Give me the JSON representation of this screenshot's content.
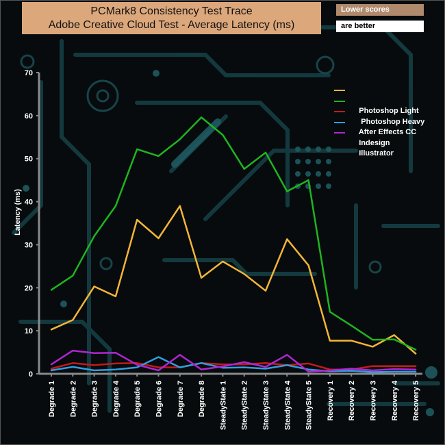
{
  "header": {
    "title_line1": "PCMark8 Consistency Test Trace",
    "title_line2": "Adobe Creative Cloud Test -  Average Latency (ms)",
    "note_line1": "Lower scores",
    "note_line2": "are better"
  },
  "colors": {
    "background": "#070b0d",
    "circuit": "#1a4a50",
    "axis": "#8a8a8a",
    "title_box": "#dca77b"
  },
  "chart_data": {
    "type": "line",
    "title": "PCMark8 Consistency Test Trace Adobe Creative Cloud Test -  Average Latency (ms)",
    "xlabel": "",
    "ylabel": "Latency (ms)",
    "ylim": [
      0,
      70
    ],
    "yticks": [
      "0",
      "10",
      "20",
      "30",
      "40",
      "50",
      "60",
      "70"
    ],
    "grid": false,
    "legend_position": "top-right",
    "categories": [
      "Degrade 1",
      "Degrade 2",
      "Degrade 3",
      "Degrade 4",
      "Degrade 5",
      "Degrade 6",
      "Degrade 7",
      "Degrade 8",
      "SteadyState 1",
      "SteadyState 2",
      "SteadyState 3",
      "SteadyState 4",
      "SteadyState 5",
      "Recovery 1",
      "Recovery 2",
      "Recovery 3",
      "Recovery 4",
      "Recovery 5"
    ],
    "series": [
      {
        "name": "Photoshop Light",
        "color": "#f5b537",
        "values": [
          10.3,
          12.5,
          20.3,
          18.0,
          35.8,
          31.5,
          39.0,
          22.3,
          26.1,
          23.2,
          19.3,
          31.3,
          25.2,
          7.7,
          7.7,
          6.3,
          9.0,
          4.7
        ]
      },
      {
        "name": " Photoshop Heavy",
        "color": "#1fb51f",
        "values": [
          19.5,
          22.8,
          32.0,
          39.0,
          52.2,
          50.6,
          54.5,
          59.6,
          55.5,
          47.6,
          51.4,
          42.4,
          45.0,
          14.4,
          11.2,
          7.9,
          8.0,
          5.6
        ]
      },
      {
        "name": "After Effects CC",
        "color": "#c41a1a",
        "values": [
          1.2,
          2.5,
          2.0,
          2.4,
          2.5,
          1.5,
          1.5,
          2.5,
          2.2,
          2.2,
          2.5,
          2.0,
          2.4,
          1.0,
          1.0,
          1.8,
          1.8,
          1.8
        ]
      },
      {
        "name": "Indesign",
        "color": "#2f9ee0",
        "values": [
          0.8,
          1.6,
          0.8,
          1.0,
          1.5,
          3.9,
          1.5,
          2.5,
          1.4,
          1.5,
          1.2,
          2.0,
          1.0,
          0.6,
          0.7,
          0.4,
          0.5,
          0.5
        ]
      },
      {
        "name": "Illustrator",
        "color": "#b026d0",
        "values": [
          2.2,
          5.4,
          4.8,
          4.9,
          2.1,
          0.8,
          4.4,
          1.0,
          1.7,
          2.7,
          1.6,
          4.4,
          0.5,
          0.8,
          1.2,
          0.8,
          1.1,
          1.0
        ]
      }
    ]
  }
}
